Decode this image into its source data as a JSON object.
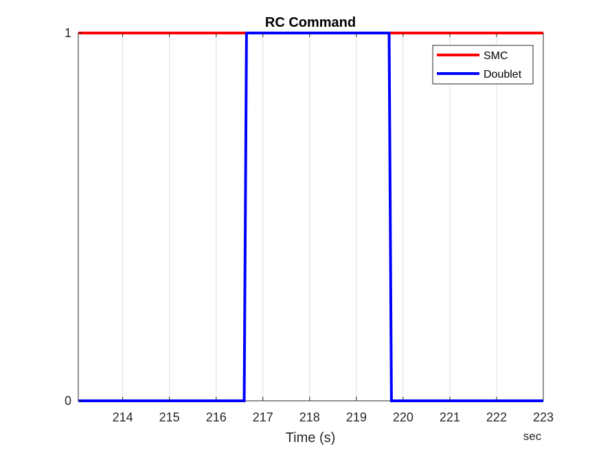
{
  "chart_data": {
    "type": "line",
    "title": "RC Command",
    "xlabel": "Time (s)",
    "x_unit_label": "sec",
    "ylabel": "",
    "xlim": [
      213.05,
      223.0
    ],
    "ylim": [
      0,
      1
    ],
    "xticks": [
      214,
      215,
      216,
      217,
      218,
      219,
      220,
      221,
      222,
      223
    ],
    "yticks": [
      0,
      1
    ],
    "grid": "vertical",
    "legend_position": "top-right",
    "series": [
      {
        "name": "SMC",
        "color": "#ff0000",
        "points": [
          [
            213.05,
            1
          ],
          [
            223.0,
            1
          ]
        ]
      },
      {
        "name": "Doublet",
        "color": "#0000ff",
        "points": [
          [
            213.05,
            0
          ],
          [
            216.6,
            0
          ],
          [
            216.65,
            1
          ],
          [
            219.7,
            1
          ],
          [
            219.75,
            0
          ],
          [
            223.0,
            0
          ]
        ]
      }
    ]
  }
}
